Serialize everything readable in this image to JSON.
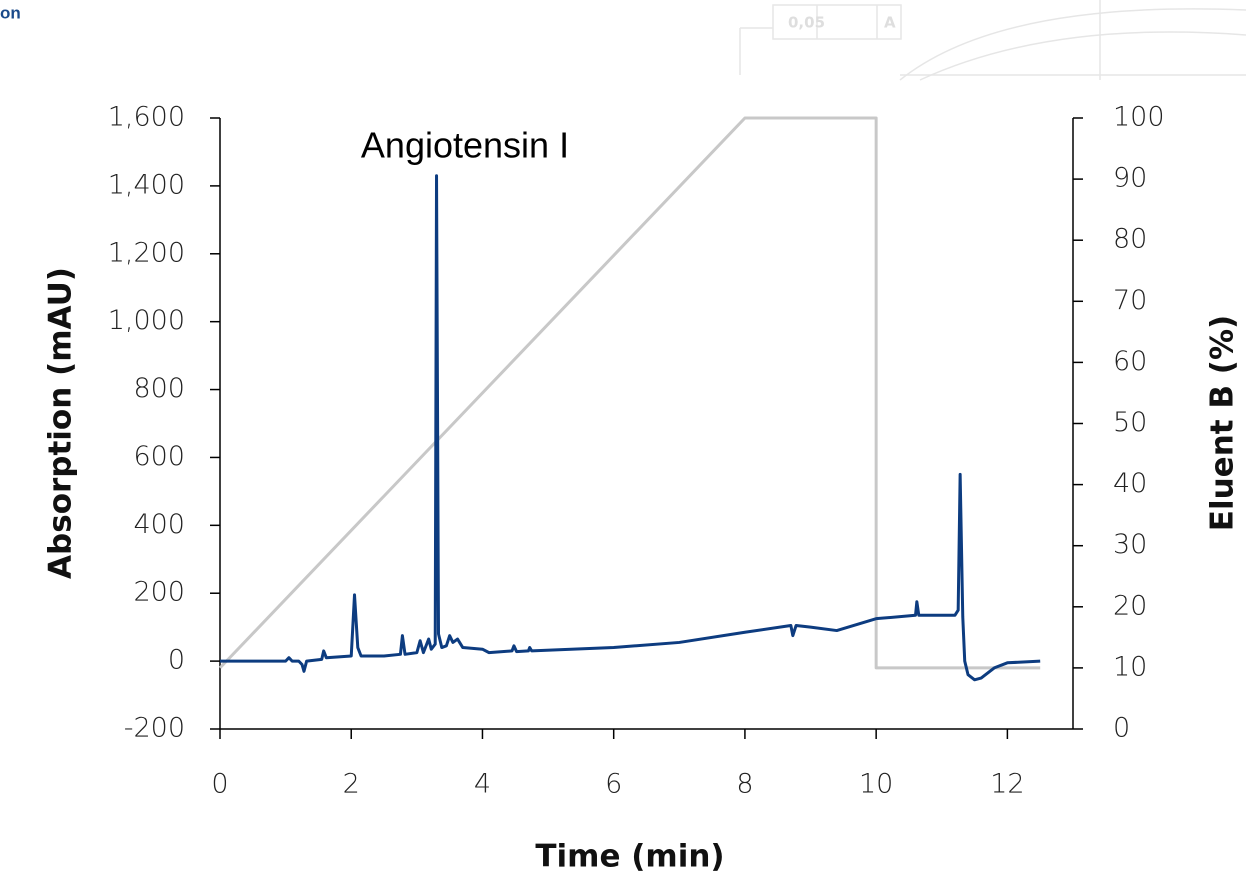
{
  "header_fragment": "on",
  "logo": {
    "tolerance": "0,05",
    "datum": "A"
  },
  "chart_data": {
    "type": "line",
    "annotation": "Angiotensin I",
    "x_label": "Time (min)",
    "y_label": "Absorption (mAU)",
    "y2_label": "Eluent B (%)",
    "xlim": [
      0,
      13
    ],
    "xticks": [
      0,
      2,
      4,
      6,
      8,
      10,
      12
    ],
    "ylim": [
      -200,
      1600
    ],
    "yticks": [
      -200,
      0,
      200,
      400,
      600,
      800,
      {
        "value": 1000,
        "label": "1,000"
      },
      {
        "value": 1200,
        "label": "1,200"
      },
      {
        "value": 1400,
        "label": "1,400"
      },
      {
        "value": 1600,
        "label": "1,600"
      }
    ],
    "y2lim": [
      0,
      100
    ],
    "y2ticks": [
      0,
      10,
      20,
      30,
      40,
      50,
      60,
      70,
      80,
      90,
      100
    ],
    "grid": false,
    "series": [
      {
        "color": "#c8c8c8",
        "axis": "y2",
        "x": [
          0,
          8,
          10,
          10,
          12.5
        ],
        "values": [
          10,
          100,
          100,
          10,
          10
        ]
      },
      {
        "color": "#0d3c80",
        "x": [
          0,
          1.0,
          1.05,
          1.1,
          1.2,
          1.25,
          1.28,
          1.32,
          1.55,
          1.58,
          1.62,
          2.0,
          2.05,
          2.1,
          2.15,
          2.5,
          2.75,
          2.78,
          2.82,
          3.0,
          3.05,
          3.1,
          3.18,
          3.22,
          3.28,
          3.3,
          3.33,
          3.38,
          3.45,
          3.5,
          3.55,
          3.62,
          3.7,
          4.0,
          4.1,
          4.45,
          4.48,
          4.52,
          4.7,
          4.72,
          4.75,
          6.0,
          7.0,
          8.0,
          8.7,
          8.73,
          8.78,
          9.0,
          9.4,
          10.0,
          10.6,
          10.62,
          10.65,
          11.2,
          11.25,
          11.28,
          11.32,
          11.35,
          11.4,
          11.5,
          11.6,
          11.8,
          12.0,
          12.5
        ],
        "values": [
          0,
          0,
          10,
          0,
          0,
          -10,
          -30,
          0,
          5,
          30,
          10,
          15,
          195,
          40,
          15,
          15,
          20,
          75,
          20,
          25,
          60,
          25,
          65,
          35,
          50,
          1430,
          80,
          40,
          45,
          75,
          55,
          65,
          40,
          35,
          25,
          30,
          45,
          28,
          30,
          40,
          30,
          40,
          55,
          85,
          105,
          75,
          105,
          100,
          90,
          125,
          135,
          175,
          135,
          135,
          150,
          550,
          130,
          0,
          -40,
          -55,
          -50,
          -20,
          -5,
          0
        ]
      }
    ]
  }
}
